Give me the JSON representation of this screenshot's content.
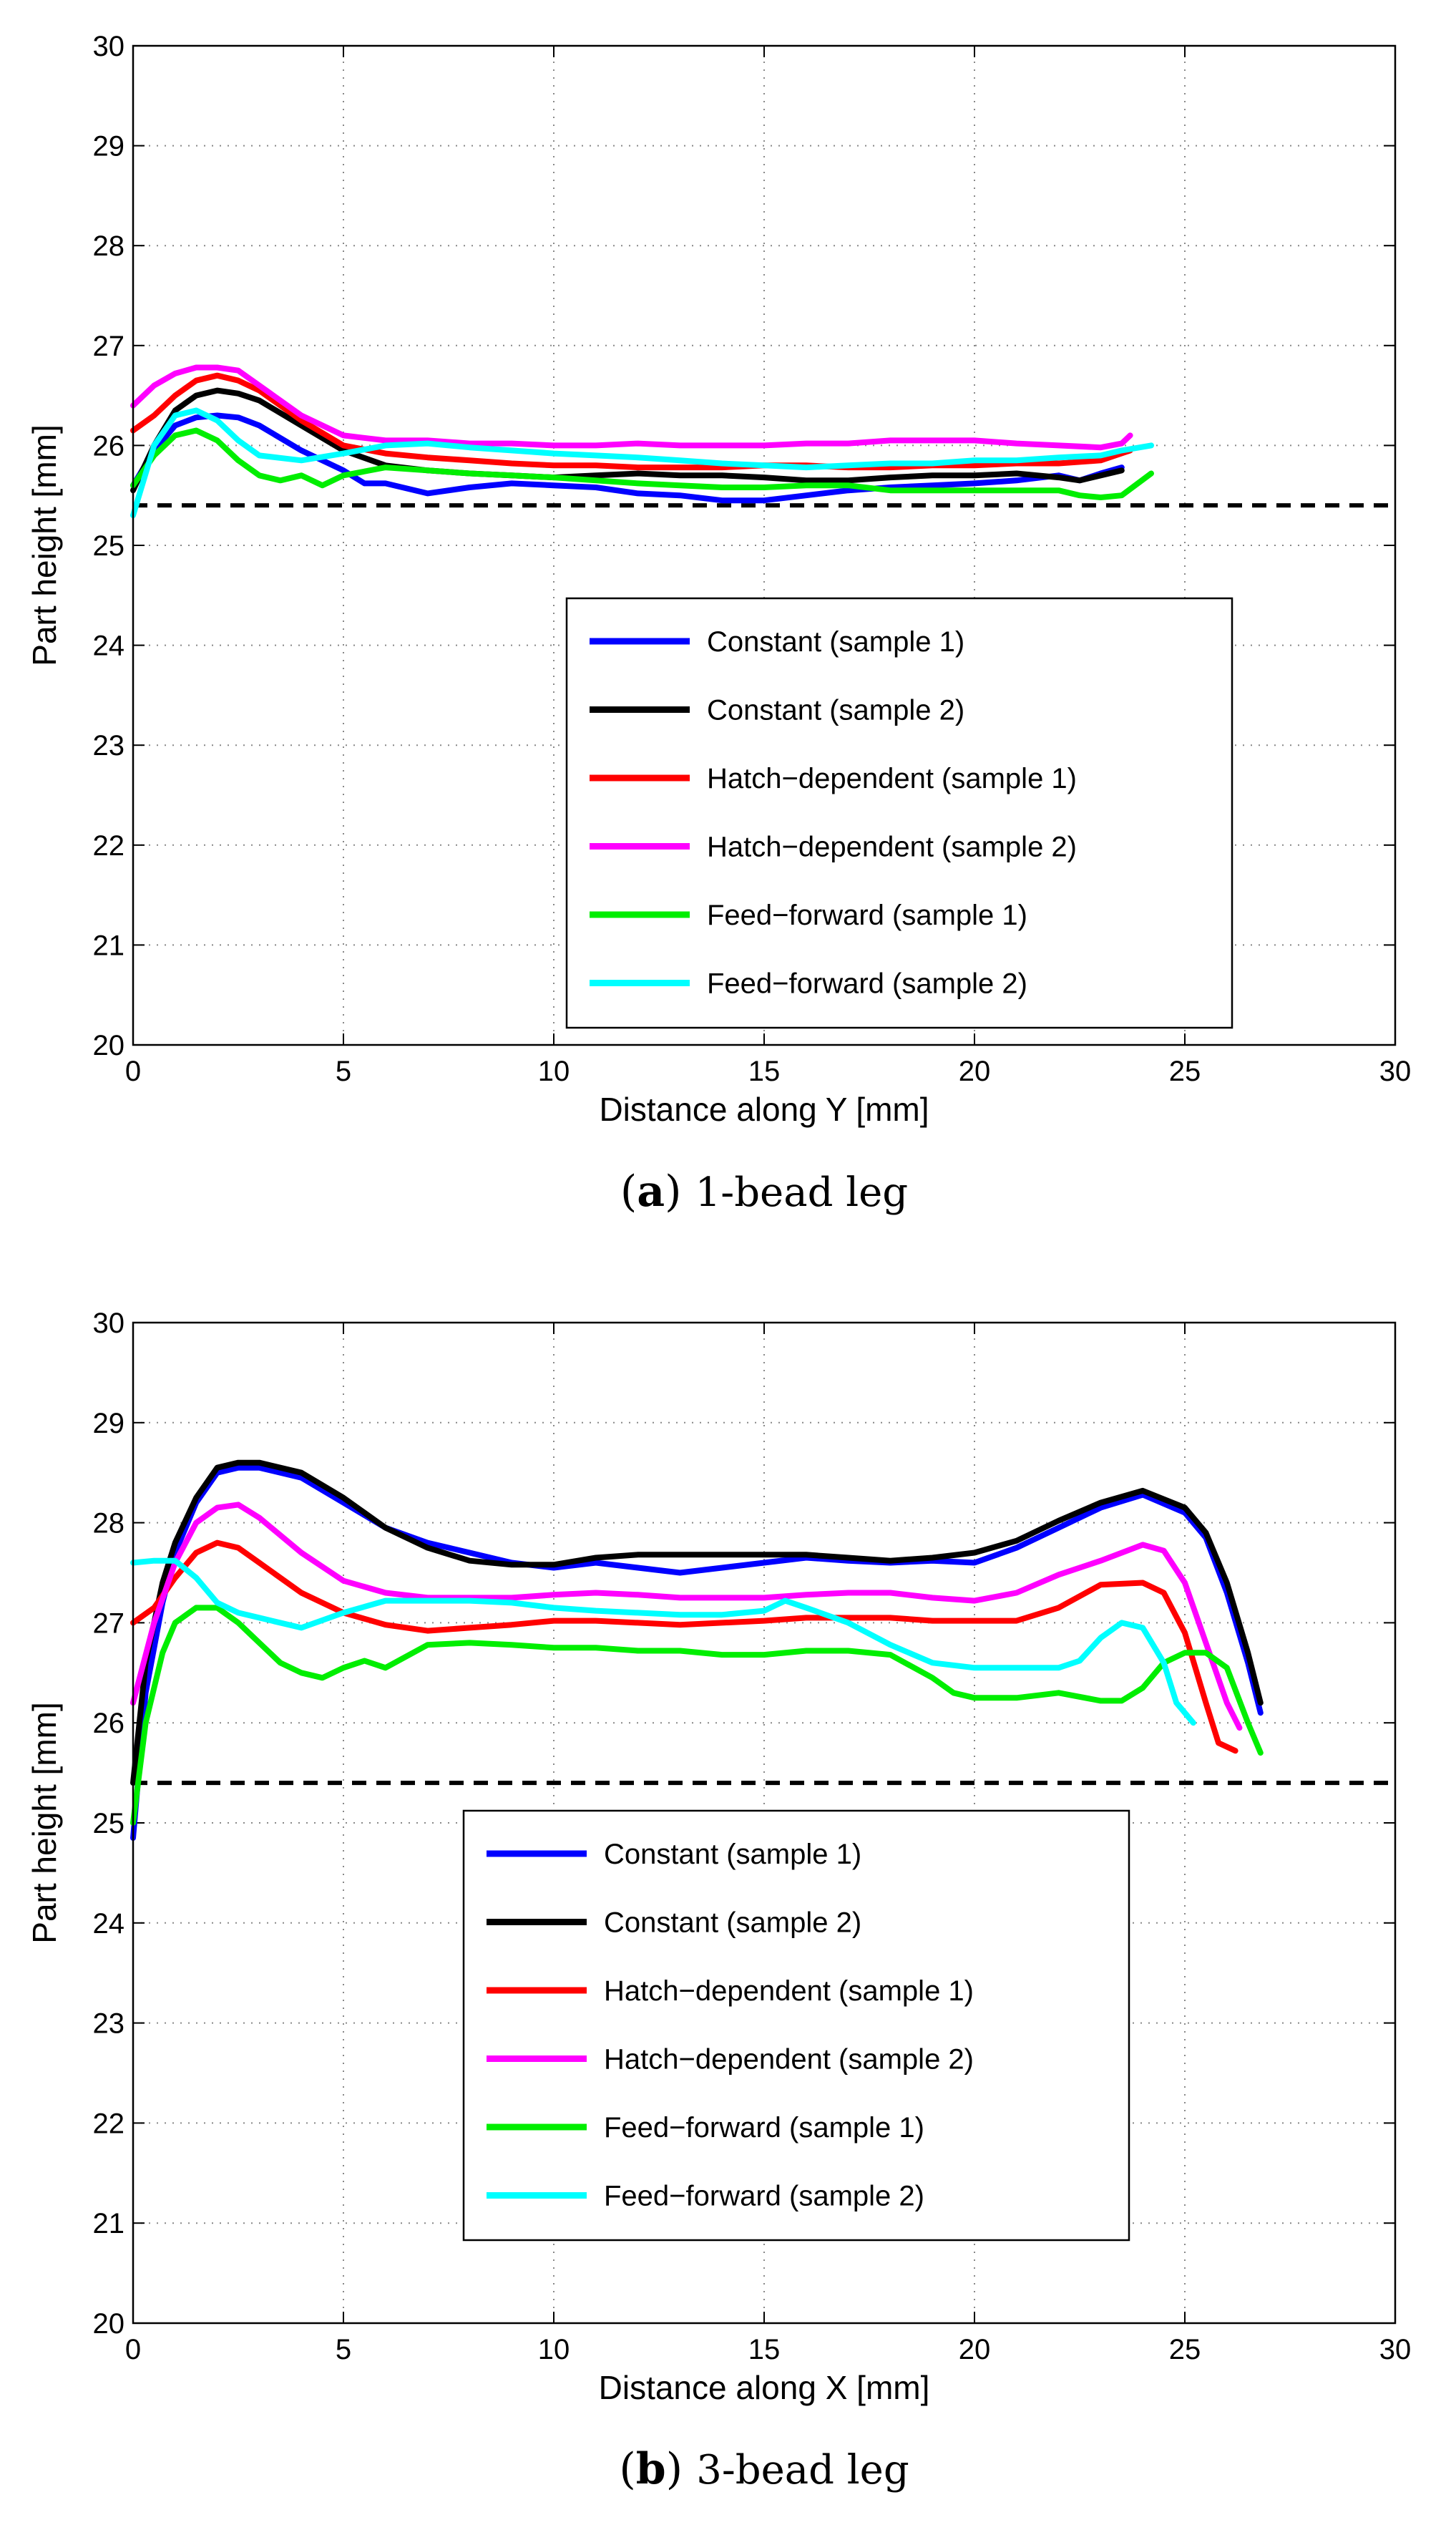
{
  "chart_data": [
    {
      "type": "line",
      "panel_letter": "a",
      "caption": "1-bead leg",
      "xlabel": "Distance along Y [mm]",
      "ylabel": "Part height [mm]",
      "xlim": [
        0,
        30
      ],
      "ylim": [
        20,
        30
      ],
      "x_ticks": [
        "0",
        "5",
        "10",
        "15",
        "20",
        "25",
        "30"
      ],
      "y_ticks": [
        "20",
        "21",
        "22",
        "23",
        "24",
        "25",
        "26",
        "27",
        "28",
        "29",
        "30"
      ],
      "grid": true,
      "legend_position": "center-right",
      "reference_line": {
        "y": 25.4,
        "style": "dashed",
        "color": "#000000"
      },
      "series": [
        {
          "name": "Constant (sample 1)",
          "color": "#0000ff",
          "x": [
            0,
            0.5,
            1,
            1.5,
            2,
            2.5,
            3,
            4,
            5,
            5.5,
            6,
            7,
            8,
            9,
            10,
            11,
            12,
            13,
            14,
            15,
            16,
            17,
            18,
            19,
            20,
            21,
            22,
            22.5,
            23,
            23.5
          ],
          "y": [
            25.6,
            25.95,
            26.2,
            26.28,
            26.3,
            26.28,
            26.2,
            25.95,
            25.75,
            25.62,
            25.62,
            25.52,
            25.58,
            25.62,
            25.6,
            25.58,
            25.52,
            25.5,
            25.45,
            25.45,
            25.5,
            25.55,
            25.58,
            25.6,
            25.62,
            25.65,
            25.7,
            25.65,
            25.72,
            25.78
          ]
        },
        {
          "name": "Constant (sample 2)",
          "color": "#000000",
          "x": [
            0,
            0.5,
            1,
            1.5,
            2,
            2.5,
            3,
            4,
            5,
            6,
            7,
            8,
            9,
            10,
            11,
            12,
            13,
            14,
            15,
            16,
            17,
            18,
            19,
            20,
            21,
            22,
            22.5,
            23,
            23.5
          ],
          "y": [
            25.55,
            26.0,
            26.35,
            26.5,
            26.55,
            26.52,
            26.45,
            26.2,
            25.95,
            25.8,
            25.75,
            25.72,
            25.7,
            25.68,
            25.7,
            25.72,
            25.7,
            25.7,
            25.68,
            25.65,
            25.65,
            25.68,
            25.7,
            25.7,
            25.72,
            25.68,
            25.65,
            25.7,
            25.75
          ]
        },
        {
          "name": "Hatch−dependent (sample 1)",
          "color": "#ff0000",
          "x": [
            0,
            0.5,
            1,
            1.5,
            2,
            2.5,
            3,
            4,
            5,
            6,
            7,
            8,
            9,
            10,
            11,
            12,
            13,
            14,
            15,
            16,
            17,
            18,
            19,
            20,
            21,
            22,
            23,
            23.7
          ],
          "y": [
            26.15,
            26.3,
            26.5,
            26.65,
            26.7,
            26.65,
            26.55,
            26.25,
            26.0,
            25.92,
            25.88,
            25.85,
            25.82,
            25.8,
            25.8,
            25.78,
            25.78,
            25.78,
            25.8,
            25.8,
            25.78,
            25.78,
            25.8,
            25.8,
            25.82,
            25.82,
            25.85,
            25.95
          ]
        },
        {
          "name": "Hatch−dependent (sample 2)",
          "color": "#ff00ff",
          "x": [
            0,
            0.5,
            1,
            1.5,
            2,
            2.5,
            3,
            4,
            5,
            6,
            7,
            8,
            9,
            10,
            11,
            12,
            13,
            14,
            15,
            16,
            17,
            18,
            19,
            20,
            21,
            22,
            23,
            23.5,
            23.7
          ],
          "y": [
            26.4,
            26.6,
            26.72,
            26.78,
            26.78,
            26.75,
            26.6,
            26.3,
            26.1,
            26.05,
            26.05,
            26.02,
            26.02,
            26.0,
            26.0,
            26.02,
            26.0,
            26.0,
            26.0,
            26.02,
            26.02,
            26.05,
            26.05,
            26.05,
            26.02,
            26.0,
            25.98,
            26.02,
            26.1
          ]
        },
        {
          "name": "Feed−forward (sample 1)",
          "color": "#00ee00",
          "x": [
            0,
            0.5,
            1,
            1.5,
            2,
            2.5,
            3,
            3.5,
            4,
            4.5,
            5,
            6,
            7,
            8,
            9,
            10,
            11,
            12,
            13,
            14,
            15,
            16,
            17,
            18,
            19,
            20,
            21,
            22,
            22.5,
            23,
            23.5,
            24.2
          ],
          "y": [
            25.6,
            25.9,
            26.1,
            26.15,
            26.05,
            25.85,
            25.7,
            25.65,
            25.7,
            25.6,
            25.7,
            25.78,
            25.75,
            25.72,
            25.7,
            25.68,
            25.65,
            25.62,
            25.6,
            25.58,
            25.58,
            25.6,
            25.6,
            25.55,
            25.55,
            25.55,
            25.55,
            25.55,
            25.5,
            25.48,
            25.5,
            25.72
          ]
        },
        {
          "name": "Feed−forward (sample 2)",
          "color": "#00ffff",
          "x": [
            0,
            0.5,
            1,
            1.5,
            2,
            2.5,
            3,
            4,
            5,
            6,
            7,
            8,
            9,
            10,
            11,
            12,
            13,
            14,
            15,
            16,
            17,
            18,
            19,
            20,
            21,
            22,
            23,
            23.5,
            24.2
          ],
          "y": [
            25.3,
            26.0,
            26.3,
            26.35,
            26.25,
            26.05,
            25.9,
            25.85,
            25.92,
            26.0,
            26.02,
            25.98,
            25.95,
            25.92,
            25.9,
            25.88,
            25.85,
            25.82,
            25.8,
            25.78,
            25.8,
            25.82,
            25.82,
            25.85,
            25.85,
            25.88,
            25.9,
            25.95,
            26.0
          ]
        }
      ]
    },
    {
      "type": "line",
      "panel_letter": "b",
      "caption": "3-bead leg",
      "xlabel": "Distance along X [mm]",
      "ylabel": "Part height [mm]",
      "xlim": [
        0,
        30
      ],
      "ylim": [
        20,
        30
      ],
      "x_ticks": [
        "0",
        "5",
        "10",
        "15",
        "20",
        "25",
        "30"
      ],
      "y_ticks": [
        "20",
        "21",
        "22",
        "23",
        "24",
        "25",
        "26",
        "27",
        "28",
        "29",
        "30"
      ],
      "grid": true,
      "legend_position": "center",
      "reference_line": {
        "y": 25.4,
        "style": "dashed",
        "color": "#000000"
      },
      "series": [
        {
          "name": "Constant (sample 1)",
          "color": "#0000ff",
          "x": [
            0,
            0.3,
            0.7,
            1,
            1.5,
            2,
            2.5,
            3,
            4,
            5,
            6,
            7,
            8,
            9,
            10,
            11,
            12,
            13,
            14,
            15,
            16,
            17,
            18,
            19,
            20,
            21,
            22,
            23,
            24,
            25,
            25.5,
            26,
            26.5,
            26.8
          ],
          "y": [
            24.85,
            26.3,
            27.2,
            27.7,
            28.2,
            28.5,
            28.55,
            28.55,
            28.45,
            28.2,
            27.95,
            27.8,
            27.7,
            27.6,
            27.55,
            27.6,
            27.55,
            27.5,
            27.55,
            27.6,
            27.65,
            27.62,
            27.6,
            27.62,
            27.6,
            27.75,
            27.95,
            28.15,
            28.28,
            28.1,
            27.85,
            27.3,
            26.6,
            26.1
          ]
        },
        {
          "name": "Constant (sample 2)",
          "color": "#000000",
          "x": [
            0,
            0.3,
            0.7,
            1,
            1.5,
            2,
            2.5,
            3,
            4,
            5,
            6,
            7,
            8,
            9,
            10,
            11,
            12,
            13,
            14,
            15,
            16,
            17,
            18,
            19,
            20,
            21,
            22,
            23,
            24,
            25,
            25.5,
            26,
            26.5,
            26.8
          ],
          "y": [
            25.4,
            26.6,
            27.4,
            27.8,
            28.25,
            28.55,
            28.6,
            28.6,
            28.5,
            28.25,
            27.95,
            27.75,
            27.62,
            27.58,
            27.58,
            27.65,
            27.68,
            27.68,
            27.68,
            27.68,
            27.68,
            27.65,
            27.62,
            27.65,
            27.7,
            27.82,
            28.02,
            28.2,
            28.32,
            28.15,
            27.9,
            27.4,
            26.7,
            26.2
          ]
        },
        {
          "name": "Hatch−dependent (sample 1)",
          "color": "#ff0000",
          "x": [
            0,
            0.5,
            1,
            1.5,
            2,
            2.5,
            3,
            4,
            5,
            6,
            7,
            8,
            9,
            10,
            11,
            12,
            13,
            14,
            15,
            16,
            17,
            18,
            19,
            20,
            21,
            22,
            23,
            24,
            24.5,
            25,
            25.5,
            25.8,
            26.2
          ],
          "y": [
            27.0,
            27.15,
            27.45,
            27.7,
            27.8,
            27.75,
            27.6,
            27.3,
            27.1,
            26.98,
            26.92,
            26.95,
            26.98,
            27.02,
            27.02,
            27.0,
            26.98,
            27.0,
            27.02,
            27.05,
            27.05,
            27.05,
            27.02,
            27.02,
            27.02,
            27.15,
            27.38,
            27.4,
            27.3,
            26.9,
            26.2,
            25.8,
            25.72
          ]
        },
        {
          "name": "Hatch−dependent (sample 2)",
          "color": "#ff00ff",
          "x": [
            0,
            0.5,
            1,
            1.5,
            2,
            2.5,
            3,
            4,
            5,
            6,
            7,
            8,
            9,
            10,
            11,
            12,
            13,
            14,
            15,
            16,
            17,
            18,
            19,
            20,
            21,
            22,
            23,
            24,
            24.5,
            25,
            25.5,
            26,
            26.3
          ],
          "y": [
            26.2,
            27.0,
            27.6,
            28.0,
            28.15,
            28.18,
            28.05,
            27.7,
            27.42,
            27.3,
            27.25,
            27.25,
            27.25,
            27.28,
            27.3,
            27.28,
            27.25,
            27.25,
            27.25,
            27.28,
            27.3,
            27.3,
            27.25,
            27.22,
            27.3,
            27.48,
            27.62,
            27.78,
            27.72,
            27.4,
            26.8,
            26.2,
            25.95
          ]
        },
        {
          "name": "Feed−forward (sample 1)",
          "color": "#00ee00",
          "x": [
            0,
            0.3,
            0.7,
            1,
            1.5,
            2,
            2.5,
            3,
            3.5,
            4,
            4.5,
            5,
            5.5,
            6,
            7,
            8,
            9,
            10,
            11,
            12,
            13,
            14,
            15,
            16,
            17,
            18,
            19,
            19.5,
            20,
            21,
            22,
            23,
            23.5,
            24,
            24.5,
            25,
            25.5,
            26,
            26.5,
            26.8
          ],
          "y": [
            25.0,
            26.0,
            26.7,
            27.0,
            27.15,
            27.15,
            27.0,
            26.8,
            26.6,
            26.5,
            26.45,
            26.55,
            26.62,
            26.55,
            26.78,
            26.8,
            26.78,
            26.75,
            26.75,
            26.72,
            26.72,
            26.68,
            26.68,
            26.72,
            26.72,
            26.68,
            26.45,
            26.3,
            26.25,
            26.25,
            26.3,
            26.22,
            26.22,
            26.35,
            26.6,
            26.7,
            26.7,
            26.55,
            26.0,
            25.7
          ]
        },
        {
          "name": "Feed−forward (sample 2)",
          "color": "#00ffff",
          "x": [
            0,
            0.5,
            1,
            1.5,
            2,
            2.5,
            3,
            4,
            5,
            6,
            7,
            8,
            9,
            10,
            11,
            12,
            13,
            14,
            15,
            15.5,
            16,
            17,
            18,
            19,
            20,
            21,
            22,
            22.5,
            23,
            23.5,
            24,
            24.5,
            24.8,
            25.2
          ],
          "y": [
            27.6,
            27.62,
            27.62,
            27.45,
            27.2,
            27.1,
            27.05,
            26.95,
            27.1,
            27.22,
            27.22,
            27.22,
            27.2,
            27.15,
            27.12,
            27.1,
            27.08,
            27.08,
            27.12,
            27.22,
            27.15,
            27.0,
            26.78,
            26.6,
            26.55,
            26.55,
            26.55,
            26.62,
            26.85,
            27.0,
            26.95,
            26.6,
            26.2,
            26.0
          ]
        }
      ]
    }
  ]
}
